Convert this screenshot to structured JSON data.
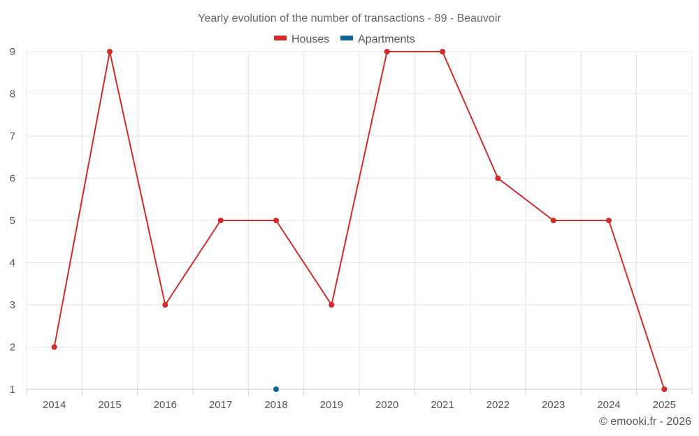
{
  "chart_data": {
    "type": "line",
    "title": "Yearly evolution of the number of transactions - 89 - Beauvoir",
    "categories": [
      "2014",
      "2015",
      "2016",
      "2017",
      "2018",
      "2019",
      "2020",
      "2021",
      "2022",
      "2023",
      "2024",
      "2025"
    ],
    "series": [
      {
        "name": "Houses",
        "color": "#d32a2a",
        "values": [
          2,
          9,
          3,
          5,
          5,
          3,
          9,
          9,
          6,
          5,
          5,
          1
        ]
      },
      {
        "name": "Apartments",
        "color": "#0d6699",
        "values": [
          null,
          null,
          null,
          null,
          1,
          null,
          null,
          null,
          null,
          null,
          null,
          null
        ]
      }
    ],
    "y_ticks": [
      "1",
      "2",
      "3",
      "4",
      "5",
      "6",
      "7",
      "8",
      "9"
    ],
    "ylim": [
      1,
      9
    ],
    "xlabel": "",
    "ylabel": "",
    "grid": true,
    "legend_position": "top-center"
  },
  "credit": "© emooki.fr - 2026"
}
